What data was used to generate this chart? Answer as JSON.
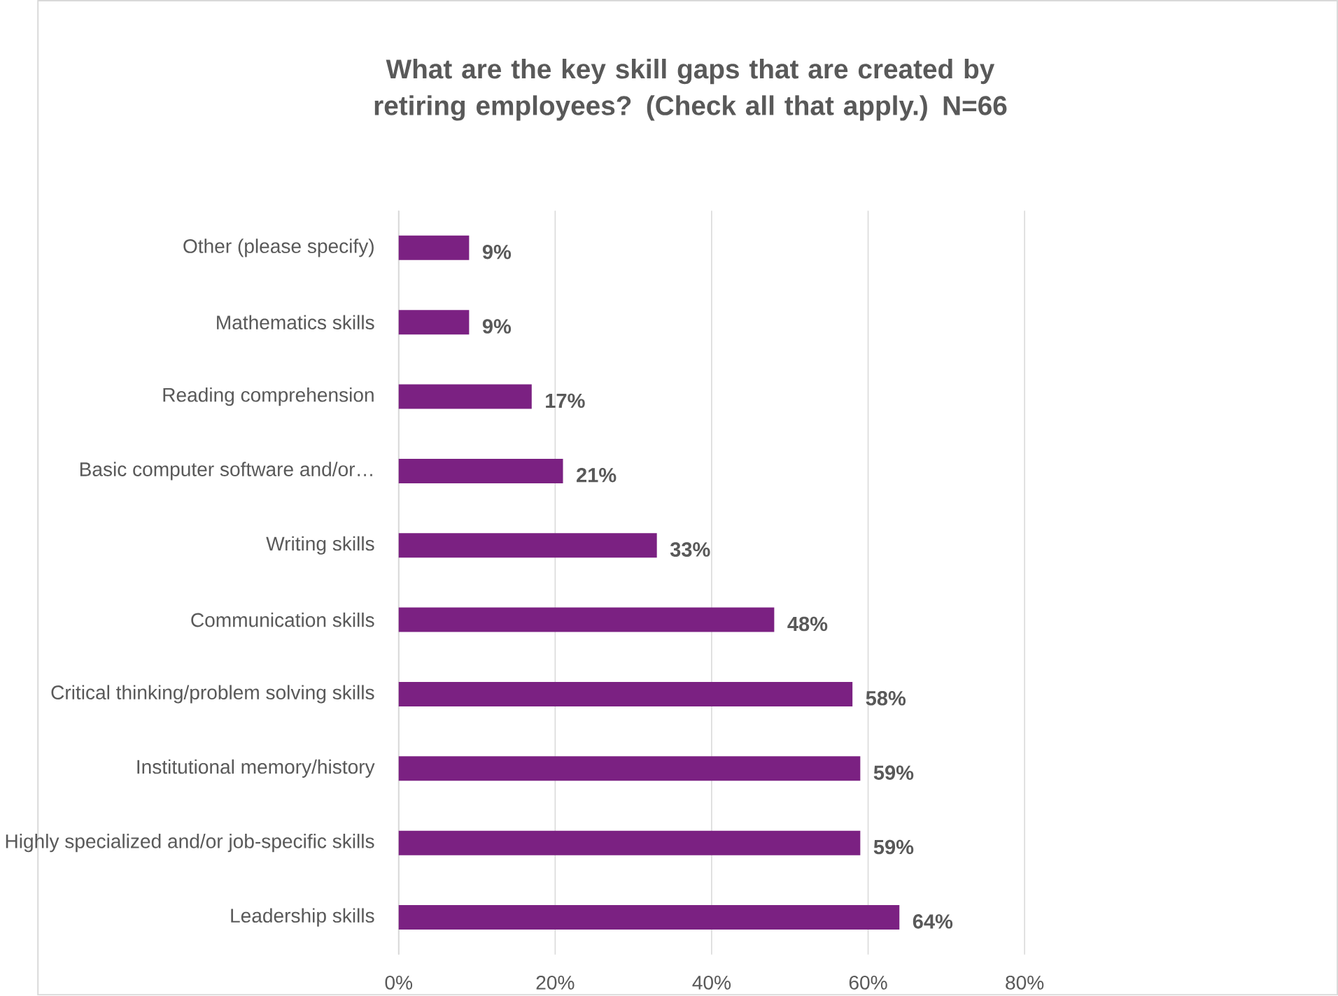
{
  "chart_data": {
    "type": "bar",
    "orientation": "horizontal",
    "title": "What are the key skill gaps that are created by retiring employees? (Check all that apply.) N=66",
    "categories": [
      "Other (please specify)",
      "Mathematics skills",
      "Reading comprehension",
      "Basic computer software and/or…",
      "Writing skills",
      "Communication skills",
      "Critical thinking/problem solving skills",
      "Institutional memory/history",
      "Highly specialized and/or job-specific skills",
      "Leadership skills"
    ],
    "values": [
      9,
      9,
      17,
      21,
      33,
      48,
      58,
      59,
      59,
      64
    ],
    "value_labels": [
      "9%",
      "9%",
      "17%",
      "21%",
      "33%",
      "48%",
      "58%",
      "59%",
      "59%",
      "64%"
    ],
    "color": "#7b2182",
    "xlim": [
      0,
      80
    ],
    "xticks": [
      {
        "value": 0,
        "label": "0%"
      },
      {
        "value": 20,
        "label": "20%"
      },
      {
        "value": 40,
        "label": "40%"
      },
      {
        "value": 60,
        "label": "60%"
      },
      {
        "value": 80,
        "label": "80%"
      }
    ],
    "grid": "x"
  }
}
